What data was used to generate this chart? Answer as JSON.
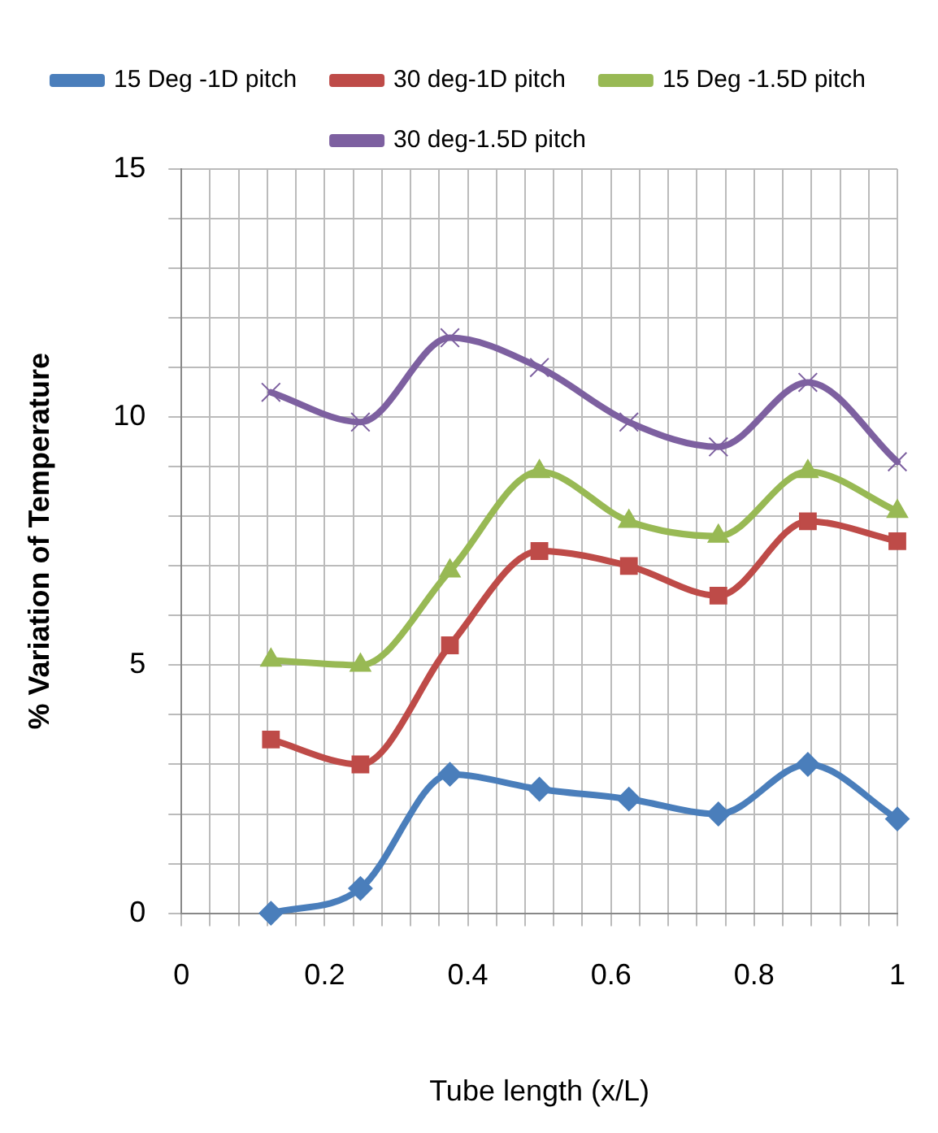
{
  "chart_data": {
    "type": "line",
    "xlabel": "Tube length (x/L)",
    "ylabel": "% Variation of Temperature",
    "x": [
      0.125,
      0.25,
      0.375,
      0.5,
      0.625,
      0.75,
      0.875,
      1
    ],
    "series": [
      {
        "name": "15 Deg -1D pitch",
        "color": "#4a7ebb",
        "marker": "diamond",
        "values": [
          0,
          0.5,
          2.8,
          2.5,
          2.3,
          2.0,
          3.0,
          1.9
        ]
      },
      {
        "name": "30 deg-1D pitch",
        "color": "#be4b48",
        "marker": "square",
        "values": [
          3.5,
          3.0,
          5.4,
          7.3,
          7.0,
          6.4,
          7.9,
          7.5
        ]
      },
      {
        "name": "15 Deg -1.5D pitch",
        "color": "#98b954",
        "marker": "triangle",
        "values": [
          5.1,
          5.0,
          6.9,
          8.9,
          7.9,
          7.6,
          8.9,
          8.1
        ]
      },
      {
        "name": "30 deg-1.5D pitch",
        "color": "#7d60a0",
        "marker": "cross",
        "values": [
          10.5,
          9.9,
          11.6,
          11.0,
          9.9,
          9.4,
          10.7,
          9.1
        ]
      }
    ],
    "xlim": [
      0,
      1
    ],
    "xticks": [
      0,
      {
        "value": 0.04,
        "label": null
      },
      {
        "value": 0.08,
        "label": null
      },
      {
        "value": 0.12,
        "label": null
      },
      {
        "value": 0.16,
        "label": null
      },
      0.2,
      {
        "value": 0.24,
        "label": null
      },
      {
        "value": 0.28,
        "label": null
      },
      {
        "value": 0.32,
        "label": null
      },
      {
        "value": 0.36,
        "label": null
      },
      0.4,
      {
        "value": 0.44,
        "label": null
      },
      {
        "value": 0.48,
        "label": null
      },
      {
        "value": 0.52,
        "label": null
      },
      {
        "value": 0.56,
        "label": null
      },
      0.6,
      {
        "value": 0.64,
        "label": null
      },
      {
        "value": 0.68,
        "label": null
      },
      {
        "value": 0.72,
        "label": null
      },
      {
        "value": 0.76,
        "label": null
      },
      0.8,
      {
        "value": 0.84,
        "label": null
      },
      {
        "value": 0.88,
        "label": null
      },
      {
        "value": 0.92,
        "label": null
      },
      {
        "value": 0.96,
        "label": null
      },
      1
    ],
    "ylim": [
      0,
      15
    ],
    "yticks": [
      0,
      {
        "value": 1,
        "label": null
      },
      {
        "value": 2,
        "label": null
      },
      {
        "value": 3,
        "label": null
      },
      {
        "value": 4,
        "label": null
      },
      5,
      {
        "value": 6,
        "label": null
      },
      {
        "value": 7,
        "label": null
      },
      {
        "value": 8,
        "label": null
      },
      {
        "value": 9,
        "label": null
      },
      10,
      {
        "value": 11,
        "label": null
      },
      {
        "value": 12,
        "label": null
      },
      {
        "value": 13,
        "label": null
      },
      {
        "value": 14,
        "label": null
      },
      15
    ],
    "grid": true,
    "legend": "top"
  }
}
